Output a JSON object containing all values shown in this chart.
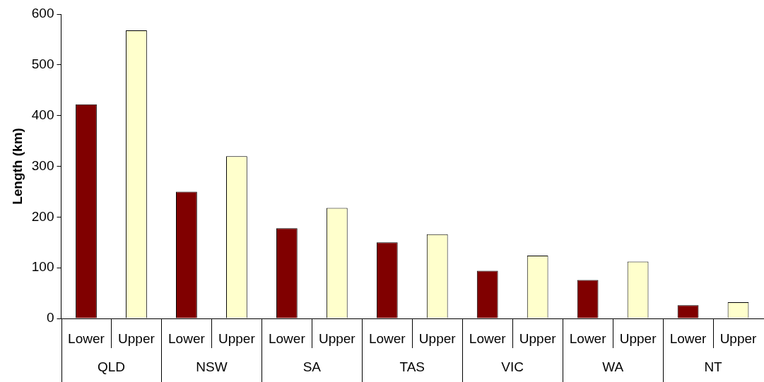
{
  "chart_data": {
    "type": "bar",
    "ylabel": "Length (km)",
    "categories": [
      "QLD",
      "NSW",
      "SA",
      "TAS",
      "VIC",
      "WA",
      "NT"
    ],
    "series": [
      {
        "name": "Lower",
        "color": "#800000",
        "values": [
          422,
          250,
          178,
          150,
          94,
          76,
          26
        ]
      },
      {
        "name": "Upper",
        "color": "#ffffcc",
        "values": [
          568,
          320,
          218,
          166,
          124,
          112,
          32
        ]
      }
    ],
    "ylim": [
      0,
      600
    ],
    "yticks": [
      0,
      100,
      200,
      300,
      400,
      500,
      600
    ]
  }
}
